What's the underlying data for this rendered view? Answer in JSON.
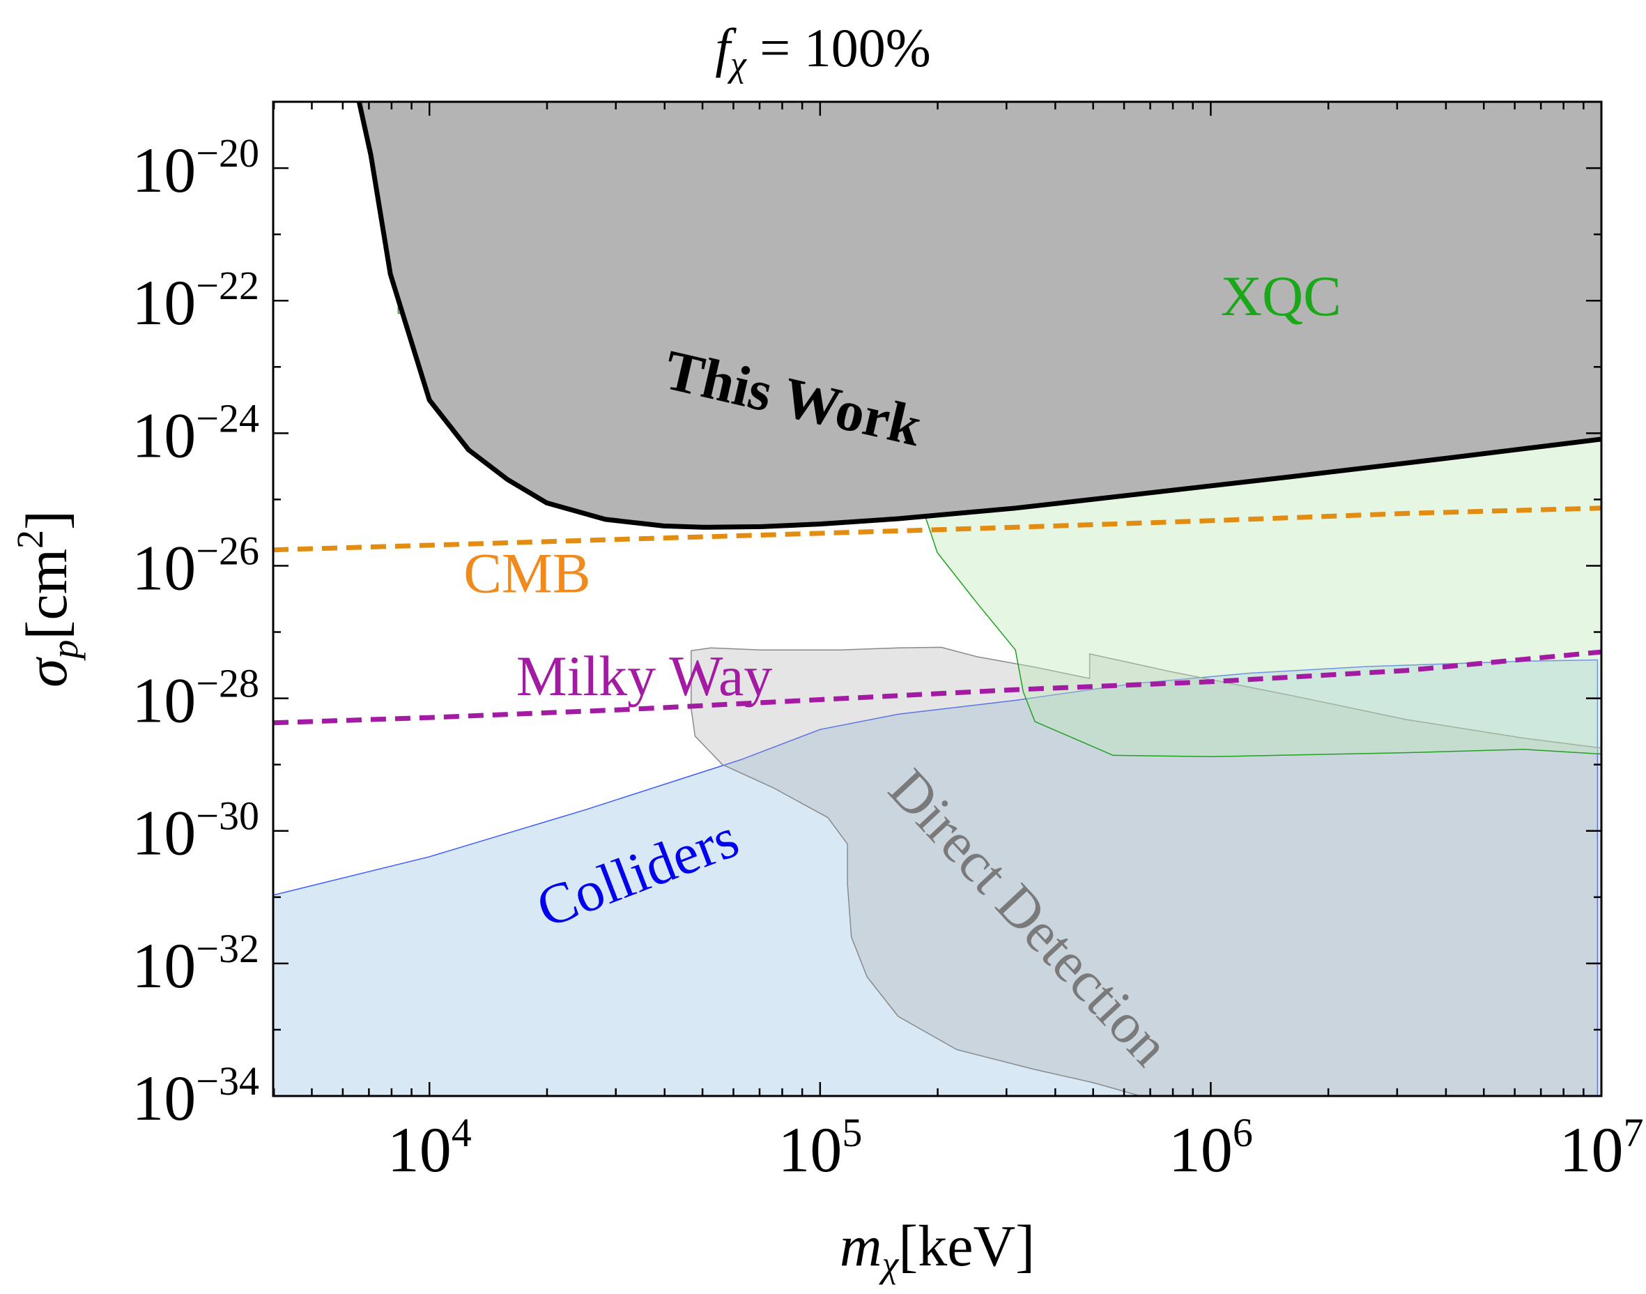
{
  "chart_data": {
    "type": "area",
    "title": "f_χ = 100%",
    "title_parts": {
      "symbol": "f",
      "subscript": "χ",
      "equals": " = ",
      "value": "100%"
    },
    "xlabel": "m_χ[keV]",
    "xlabel_parts": {
      "symbol": "m",
      "subscript": "χ",
      "unit": "[keV]"
    },
    "ylabel": "σ_p[cm^2]",
    "ylabel_parts": {
      "symbol": "σ",
      "subscript": "p",
      "unit_open": "[cm",
      "unit_exp": "2",
      "unit_close": "]"
    },
    "x_scale": "log10",
    "y_scale": "log10",
    "xlim_log10": [
      3.6,
      7.0
    ],
    "ylim_log10": [
      -34.0,
      -19.0
    ],
    "grid": false,
    "x_ticks": [
      {
        "exp": 4,
        "base": "10",
        "power": "4"
      },
      {
        "exp": 5,
        "base": "10",
        "power": "5"
      },
      {
        "exp": 6,
        "base": "10",
        "power": "6"
      },
      {
        "exp": 7,
        "base": "10",
        "power": "7"
      }
    ],
    "y_ticks": [
      {
        "exp": -20,
        "base": "10",
        "power": "−20"
      },
      {
        "exp": -22,
        "base": "10",
        "power": "−22"
      },
      {
        "exp": -24,
        "base": "10",
        "power": "−24"
      },
      {
        "exp": -26,
        "base": "10",
        "power": "−26"
      },
      {
        "exp": -28,
        "base": "10",
        "power": "−28"
      },
      {
        "exp": -30,
        "base": "10",
        "power": "−30"
      },
      {
        "exp": -32,
        "base": "10",
        "power": "−32"
      },
      {
        "exp": -34,
        "base": "10",
        "power": "−34"
      }
    ],
    "regions": [
      {
        "name": "Colliders",
        "label": "Colliders",
        "fill": "#d9e8f5",
        "stroke": "#3b5cff",
        "fill_opacity": 1.0,
        "points_log10": [
          [
            3.6,
            -34.0
          ],
          [
            3.6,
            -30.97
          ],
          [
            4.0,
            -30.39
          ],
          [
            4.4,
            -29.68
          ],
          [
            4.8,
            -28.92
          ],
          [
            5.0,
            -28.47
          ],
          [
            5.2,
            -28.24
          ],
          [
            5.5,
            -28.03
          ],
          [
            5.8,
            -27.78
          ],
          [
            6.1,
            -27.62
          ],
          [
            6.4,
            -27.52
          ],
          [
            6.8,
            -27.44
          ],
          [
            6.99,
            -27.42
          ],
          [
            6.99,
            -34.0
          ]
        ]
      },
      {
        "name": "Direct Detection",
        "label": "Direct Detection",
        "fill": "#a9a9a9",
        "stroke": "#8a8a8a",
        "fill_opacity": 0.3,
        "points_log10": [
          [
            4.67,
            -27.28
          ],
          [
            4.72,
            -27.24
          ],
          [
            4.85,
            -27.27
          ],
          [
            5.05,
            -27.27
          ],
          [
            5.2,
            -27.24
          ],
          [
            5.31,
            -27.23
          ],
          [
            5.4,
            -27.37
          ],
          [
            5.55,
            -27.53
          ],
          [
            5.69,
            -27.7
          ],
          [
            5.69,
            -27.33
          ],
          [
            5.9,
            -27.6
          ],
          [
            6.2,
            -27.95
          ],
          [
            6.5,
            -28.32
          ],
          [
            6.8,
            -28.6
          ],
          [
            7.0,
            -28.75
          ],
          [
            7.0,
            -34.0
          ],
          [
            5.82,
            -34.0
          ],
          [
            5.7,
            -33.8
          ],
          [
            5.55,
            -33.6
          ],
          [
            5.35,
            -33.3
          ],
          [
            5.2,
            -32.8
          ],
          [
            5.12,
            -32.2
          ],
          [
            5.08,
            -31.6
          ],
          [
            5.07,
            -30.8
          ],
          [
            5.07,
            -30.2
          ],
          [
            5.02,
            -29.8
          ],
          [
            4.88,
            -29.35
          ],
          [
            4.75,
            -29.0
          ],
          [
            4.68,
            -28.57
          ],
          [
            4.67,
            -28.15
          ]
        ]
      },
      {
        "name": "XQC",
        "label": "XQC",
        "fill": "#bde9b8",
        "stroke": "#22a022",
        "fill_opacity": 0.4,
        "points_log10": [
          [
            3.92,
            -19.31
          ],
          [
            4.15,
            -19.25
          ],
          [
            4.5,
            -19.28
          ],
          [
            5.0,
            -19.36
          ],
          [
            5.5,
            -19.44
          ],
          [
            5.9,
            -19.62
          ],
          [
            6.3,
            -19.95
          ],
          [
            6.7,
            -20.56
          ],
          [
            7.0,
            -20.07
          ],
          [
            7.0,
            -28.84
          ],
          [
            6.8,
            -28.77
          ],
          [
            6.5,
            -28.82
          ],
          [
            6.0,
            -28.88
          ],
          [
            5.75,
            -28.86
          ],
          [
            5.55,
            -28.35
          ],
          [
            5.52,
            -27.9
          ],
          [
            5.5,
            -27.27
          ],
          [
            5.4,
            -26.55
          ],
          [
            5.3,
            -25.8
          ],
          [
            5.25,
            -24.92
          ],
          [
            5.2,
            -24.6
          ],
          [
            5.0,
            -23.9
          ],
          [
            4.85,
            -23.45
          ],
          [
            4.5,
            -22.8
          ],
          [
            4.3,
            -22.48
          ],
          [
            4.0,
            -22.22
          ],
          [
            3.92,
            -22.19
          ]
        ]
      },
      {
        "name": "This Work",
        "label": "This Work",
        "fill": "#b4b4b4",
        "stroke": "#000000",
        "fill_opacity": 1.0,
        "boundary_log10": [
          [
            3.82,
            -19.0
          ],
          [
            3.85,
            -19.8
          ],
          [
            3.9,
            -21.6
          ],
          [
            3.95,
            -22.55
          ],
          [
            4.0,
            -23.5
          ],
          [
            4.1,
            -24.25
          ],
          [
            4.2,
            -24.7
          ],
          [
            4.3,
            -25.05
          ],
          [
            4.45,
            -25.3
          ],
          [
            4.6,
            -25.4
          ],
          [
            4.7,
            -25.42
          ],
          [
            4.85,
            -25.41
          ],
          [
            5.0,
            -25.37
          ],
          [
            5.2,
            -25.29
          ],
          [
            5.5,
            -25.13
          ],
          [
            5.8,
            -24.93
          ],
          [
            6.2,
            -24.66
          ],
          [
            6.6,
            -24.38
          ],
          [
            7.0,
            -24.09
          ]
        ]
      }
    ],
    "lines": [
      {
        "name": "CMB",
        "label": "CMB",
        "color": "#e38c12",
        "style": "dashed",
        "points_log10": [
          [
            3.6,
            -25.76
          ],
          [
            4.0,
            -25.69
          ],
          [
            4.5,
            -25.6
          ],
          [
            5.0,
            -25.51
          ],
          [
            5.5,
            -25.42
          ],
          [
            6.0,
            -25.32
          ],
          [
            6.5,
            -25.21
          ],
          [
            7.0,
            -25.13
          ]
        ]
      },
      {
        "name": "Milky Way",
        "label": "Milky Way",
        "color": "#a31aa3",
        "style": "dashed",
        "points_log10": [
          [
            3.6,
            -28.37
          ],
          [
            4.0,
            -28.29
          ],
          [
            4.5,
            -28.17
          ],
          [
            5.0,
            -28.02
          ],
          [
            5.5,
            -27.87
          ],
          [
            6.0,
            -27.75
          ],
          [
            6.5,
            -27.58
          ],
          [
            7.0,
            -27.3
          ]
        ]
      }
    ],
    "annotations": [
      {
        "text": "This Work",
        "color": "#000000",
        "at_log10": [
          4.92,
          -23.75
        ],
        "rotation_deg": 13,
        "bold": true
      },
      {
        "text": "XQC",
        "color": "#1aa81a",
        "at_log10": [
          6.18,
          -22.22
        ],
        "rotation_deg": 0,
        "bold": false
      },
      {
        "text": "CMB",
        "color": "#f08a1c",
        "at_log10": [
          4.25,
          -26.4
        ],
        "rotation_deg": 0,
        "bold": false
      },
      {
        "text": "Milky Way",
        "color": "#a31aa3",
        "at_log10": [
          4.55,
          -27.95
        ],
        "rotation_deg": 0,
        "bold": false
      },
      {
        "text": "Colliders",
        "color": "#0000ee",
        "at_log10": [
          4.55,
          -30.9
        ],
        "rotation_deg": -21,
        "bold": false
      },
      {
        "text": "Direct Detection",
        "color": "#7a7a7a",
        "at_log10": [
          5.5,
          -31.5
        ],
        "rotation_deg": 47,
        "bold": false
      }
    ]
  }
}
